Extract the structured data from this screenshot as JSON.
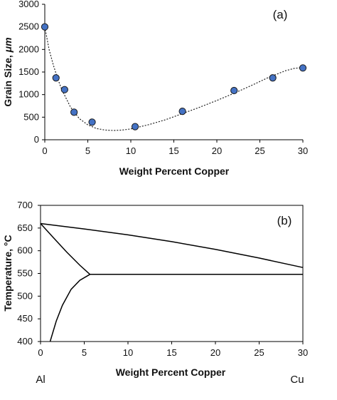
{
  "chart_data": [
    {
      "type": "scatter",
      "panel_label": "(a)",
      "xlabel": "Weight Percent Copper",
      "ylabel": "Grain Size, ",
      "ylabel_unit": "μm",
      "xlim": [
        0,
        30
      ],
      "ylim": [
        0,
        3000
      ],
      "x_ticks": [
        0,
        5,
        10,
        15,
        20,
        25,
        30
      ],
      "y_ticks": [
        0,
        500,
        1000,
        1500,
        2000,
        2500,
        3000
      ],
      "grid": false,
      "marker_color": "#4472C4",
      "points": [
        {
          "x": 0,
          "y": 2500
        },
        {
          "x": 1.3,
          "y": 1370
        },
        {
          "x": 2.3,
          "y": 1110
        },
        {
          "x": 3.4,
          "y": 610
        },
        {
          "x": 5.5,
          "y": 390
        },
        {
          "x": 10.5,
          "y": 290
        },
        {
          "x": 16,
          "y": 630
        },
        {
          "x": 22,
          "y": 1090
        },
        {
          "x": 26.5,
          "y": 1370
        },
        {
          "x": 30,
          "y": 1590
        }
      ],
      "trendline": [
        [
          0,
          2500
        ],
        [
          0.5,
          2000
        ],
        [
          1,
          1650
        ],
        [
          1.5,
          1350
        ],
        [
          2,
          1100
        ],
        [
          3,
          720
        ],
        [
          4,
          470
        ],
        [
          5,
          330
        ],
        [
          6,
          250
        ],
        [
          7,
          215
        ],
        [
          8,
          205
        ],
        [
          9,
          215
        ],
        [
          10,
          240
        ],
        [
          12,
          330
        ],
        [
          14,
          440
        ],
        [
          16,
          580
        ],
        [
          18,
          720
        ],
        [
          20,
          870
        ],
        [
          22,
          1030
        ],
        [
          24,
          1200
        ],
        [
          26,
          1380
        ],
        [
          28,
          1530
        ],
        [
          29,
          1580
        ],
        [
          30,
          1600
        ]
      ]
    },
    {
      "type": "line",
      "panel_label": "(b)",
      "xlabel": "Weight Percent Copper",
      "ylabel": "Temperature, °C",
      "xlim": [
        0,
        30
      ],
      "ylim": [
        400,
        700
      ],
      "x_ticks": [
        0,
        5,
        10,
        15,
        20,
        25,
        30
      ],
      "y_ticks": [
        400,
        450,
        500,
        550,
        600,
        650,
        700
      ],
      "grid": false,
      "left_end_label": "Al",
      "right_end_label": "Cu",
      "lines": [
        {
          "points": [
            [
              0,
              660
            ],
            [
              5,
              648
            ],
            [
              10,
              635
            ],
            [
              15,
              620
            ],
            [
              20,
              603
            ],
            [
              25,
              584
            ],
            [
              30,
              563
            ]
          ]
        },
        {
          "points": [
            [
              0,
              660
            ],
            [
              1.5,
              628
            ],
            [
              3,
              597
            ],
            [
              4.5,
              568
            ],
            [
              5.65,
              548
            ]
          ]
        },
        {
          "points": [
            [
              5.65,
              548
            ],
            [
              30,
              548
            ]
          ]
        },
        {
          "points": [
            [
              5.65,
              548
            ],
            [
              4.5,
              535
            ],
            [
              3.5,
              515
            ],
            [
              2.5,
              480
            ],
            [
              1.8,
              445
            ],
            [
              1.1,
              400
            ]
          ]
        }
      ]
    }
  ]
}
